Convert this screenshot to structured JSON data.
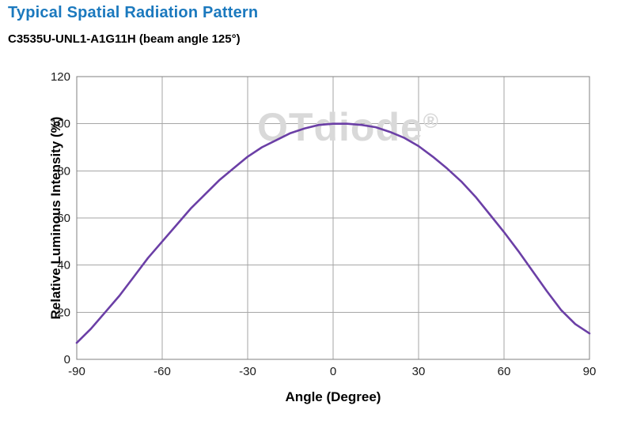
{
  "page": {
    "title": "Typical Spatial Radiation Pattern",
    "subtitle": "C3535U-UNL1-A1G11H (beam angle 125°)"
  },
  "watermark": {
    "brand": "OTdiode",
    "reg": "®"
  },
  "colors": {
    "title": "#1B79BE",
    "curve": "#6B3FA6",
    "grid": "#A6A6A6",
    "frame": "#808080",
    "watermark": "#D9D9D9",
    "tick_text": "#1a1a1a"
  },
  "chart_data": {
    "type": "line",
    "title": "Typical Spatial Radiation Pattern",
    "subtitle": "C3535U-UNL1-A1G11H (beam angle 125°)",
    "xlabel": "Angle (Degree)",
    "ylabel": "Relative Luminous Intensity (%)",
    "xlim": [
      -90,
      90
    ],
    "ylim": [
      0,
      120
    ],
    "x_ticks": [
      -90,
      -60,
      -30,
      0,
      30,
      60,
      90
    ],
    "y_ticks": [
      0,
      20,
      40,
      60,
      80,
      100,
      120
    ],
    "grid": true,
    "legend": "none",
    "series": [
      {
        "name": "relative-luminous-intensity",
        "x": [
          -90,
          -85,
          -80,
          -75,
          -70,
          -65,
          -60,
          -55,
          -50,
          -45,
          -40,
          -35,
          -30,
          -25,
          -20,
          -15,
          -10,
          -5,
          0,
          5,
          10,
          15,
          20,
          25,
          30,
          35,
          40,
          45,
          50,
          55,
          60,
          65,
          70,
          75,
          80,
          85,
          90
        ],
        "y": [
          7,
          13,
          20,
          27,
          35,
          43,
          50,
          57,
          64,
          70,
          76,
          81,
          86,
          90,
          93,
          96,
          98,
          99.5,
          100,
          100,
          99.5,
          98.5,
          96.5,
          94,
          90.5,
          86,
          81,
          75.5,
          69,
          61.5,
          54,
          46,
          37.5,
          29,
          21,
          15,
          11
        ]
      }
    ]
  }
}
